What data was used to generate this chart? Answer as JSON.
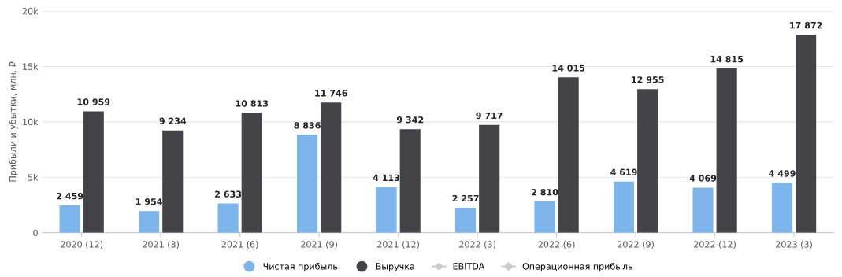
{
  "chart_data": {
    "type": "bar",
    "ylabel": "Прибыли и убытки, млн. ₽",
    "categories": [
      "2020 (12)",
      "2021 (3)",
      "2021 (6)",
      "2021 (9)",
      "2021 (12)",
      "2022 (3)",
      "2022 (6)",
      "2022 (9)",
      "2022 (12)",
      "2023 (3)"
    ],
    "series": [
      {
        "name": "Чистая прибыль",
        "color": "#7cb5ec",
        "values": [
          2459,
          1954,
          2633,
          8836,
          4113,
          2257,
          2810,
          4619,
          4069,
          4499
        ],
        "value_labels": [
          "2 459",
          "1 954",
          "2 633",
          "8 836",
          "4 113",
          "2 257",
          "2 810",
          "4 619",
          "4 069",
          "4 499"
        ]
      },
      {
        "name": "Выручка",
        "color": "#434348",
        "values": [
          10959,
          9234,
          10813,
          11746,
          9342,
          9717,
          14015,
          12955,
          14815,
          17872
        ],
        "value_labels": [
          "10 959",
          "9 234",
          "10 813",
          "11 746",
          "9 342",
          "9 717",
          "14 015",
          "12 955",
          "14 815",
          "17 872"
        ]
      },
      {
        "name": "EBITDA",
        "type": "line",
        "marker": "circle",
        "color": "#cccccc",
        "values": [
          null,
          null,
          null,
          null,
          null,
          null,
          null,
          null,
          null,
          null
        ]
      },
      {
        "name": "Операционная прибыль",
        "type": "line",
        "marker": "diamond",
        "color": "#cccccc",
        "values": [
          null,
          null,
          null,
          null,
          null,
          null,
          null,
          null,
          null,
          null
        ]
      }
    ],
    "ylim": [
      0,
      20000
    ],
    "yticks": [
      {
        "value": 0,
        "label": "0"
      },
      {
        "value": 5000,
        "label": "5k"
      },
      {
        "value": 10000,
        "label": "10k"
      },
      {
        "value": 15000,
        "label": "15k"
      },
      {
        "value": 20000,
        "label": "20k"
      }
    ],
    "grid": "y",
    "legend": "bottom"
  }
}
